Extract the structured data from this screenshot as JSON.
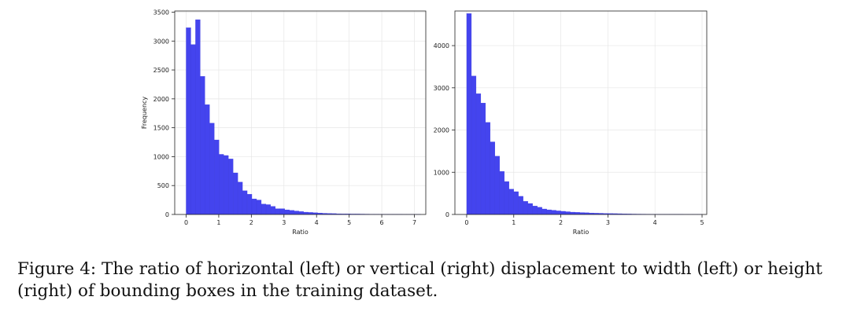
{
  "caption": "Figure 4: The ratio of horizontal (left) or vertical (right) displacement to width (left) or height (right) of bounding boxes in the training dataset.",
  "chart_data": [
    {
      "type": "bar",
      "title": "",
      "xlabel": "Ratio",
      "ylabel": "Frequency",
      "xlim": [
        -0.35,
        7.35
      ],
      "ylim": [
        0,
        3520
      ],
      "xticks": [
        0,
        1,
        2,
        3,
        4,
        5,
        6,
        7
      ],
      "yticks": [
        0,
        500,
        1000,
        1500,
        2000,
        2500,
        3000,
        3500
      ],
      "grid": true,
      "bin_width": 0.144,
      "x": [
        0.0,
        0.144,
        0.288,
        0.432,
        0.576,
        0.72,
        0.864,
        1.008,
        1.152,
        1.296,
        1.44,
        1.584,
        1.728,
        1.872,
        2.016,
        2.16,
        2.304,
        2.448,
        2.592,
        2.736,
        2.88,
        3.024,
        3.168,
        3.312,
        3.456,
        3.6,
        3.744,
        3.888,
        4.032,
        4.176,
        4.32,
        4.464,
        4.608,
        4.752,
        4.896,
        5.04,
        5.184,
        5.328,
        5.472,
        5.616,
        5.76,
        5.904,
        6.048,
        6.192,
        6.336,
        6.48,
        6.624,
        6.768,
        6.912,
        7.056
      ],
      "values": [
        3230,
        2940,
        3370,
        2390,
        1900,
        1580,
        1290,
        1040,
        1020,
        960,
        720,
        560,
        410,
        350,
        270,
        250,
        180,
        170,
        140,
        100,
        100,
        80,
        70,
        60,
        50,
        40,
        35,
        30,
        25,
        20,
        18,
        15,
        12,
        10,
        10,
        8,
        8,
        7,
        6,
        5,
        5,
        4,
        4,
        3,
        3,
        3,
        2,
        2,
        2,
        2
      ]
    },
    {
      "type": "bar",
      "title": "",
      "xlabel": "Ratio",
      "ylabel": "",
      "xlim": [
        -0.25,
        5.1
      ],
      "ylim": [
        0,
        4820
      ],
      "xticks": [
        0,
        1,
        2,
        3,
        4,
        5
      ],
      "yticks": [
        0,
        1000,
        2000,
        3000,
        4000
      ],
      "grid": true,
      "bin_width": 0.1,
      "x": [
        0.0,
        0.1,
        0.2,
        0.3,
        0.4,
        0.5,
        0.6,
        0.7,
        0.8,
        0.9,
        1.0,
        1.1,
        1.2,
        1.3,
        1.4,
        1.5,
        1.6,
        1.7,
        1.8,
        1.9,
        2.0,
        2.1,
        2.2,
        2.3,
        2.4,
        2.5,
        2.6,
        2.7,
        2.8,
        2.9,
        3.0,
        3.1,
        3.2,
        3.3,
        3.4,
        3.5,
        3.6,
        3.7,
        3.8,
        3.9,
        4.0,
        4.1,
        4.2,
        4.3,
        4.4,
        4.5,
        4.6,
        4.7,
        4.8,
        4.9
      ],
      "values": [
        4760,
        3280,
        2860,
        2640,
        2180,
        1720,
        1380,
        1020,
        780,
        600,
        540,
        430,
        310,
        260,
        200,
        170,
        130,
        110,
        100,
        85,
        75,
        65,
        55,
        50,
        45,
        40,
        35,
        30,
        28,
        25,
        22,
        20,
        18,
        15,
        12,
        10,
        9,
        8,
        7,
        6,
        5,
        5,
        4,
        4,
        3,
        3,
        2,
        2,
        2,
        2
      ]
    }
  ]
}
